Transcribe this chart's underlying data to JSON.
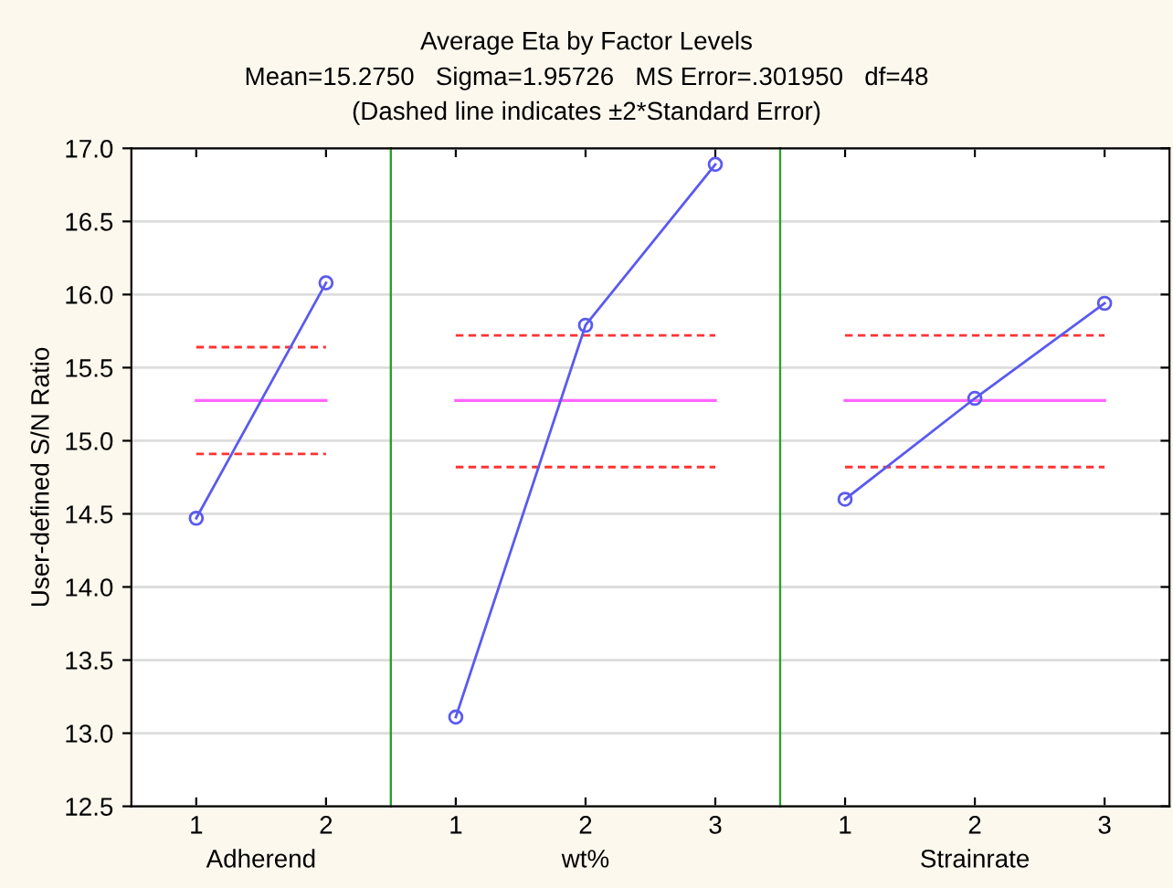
{
  "chart_data": [
    {
      "type": "line",
      "xlabel": "Adherend",
      "ylabel": "User-defined S/N Ratio",
      "categories": [
        "1",
        "2"
      ],
      "series": [
        {
          "color": "#5a5af0",
          "values": [
            14.47,
            16.08
          ]
        }
      ],
      "ylim": [
        12.5,
        17.0
      ],
      "yticks": [
        {
          "value": 12.5,
          "label": "12.5"
        },
        {
          "value": 13.0,
          "label": "13.0"
        },
        {
          "value": 13.5,
          "label": "13.5"
        },
        {
          "value": 14.0,
          "label": "14.0"
        },
        {
          "value": 14.5,
          "label": "14.5"
        },
        {
          "value": 15.0,
          "label": "15.0"
        },
        {
          "value": 15.5,
          "label": "15.5"
        },
        {
          "value": 16.0,
          "label": "16.0"
        },
        {
          "value": 16.5,
          "label": "16.5"
        },
        {
          "value": 17.0,
          "label": "17.0"
        }
      ],
      "ref_lines": [
        {
          "axis": "y",
          "value": 15.275,
          "color": "#ff66ff",
          "line_style": "solid"
        },
        {
          "axis": "y",
          "value": 15.64,
          "color": "#ff3333",
          "line_style": "dashed"
        },
        {
          "axis": "y",
          "value": 14.91,
          "color": "#ff3333",
          "line_style": "dashed"
        }
      ],
      "grid": "y",
      "marker": "circle",
      "line_style": "solid"
    },
    {
      "type": "line",
      "title": "Average Eta by Factor Levels",
      "subtitle": "Mean=15.2750   Sigma=1.95726   MS Error=.301950   df=48\n(Dashed line indicates ±2*Standard Error)",
      "xlabel": "wt%",
      "categories": [
        "1",
        "2",
        "3"
      ],
      "series": [
        {
          "color": "#5a5af0",
          "values": [
            13.11,
            15.79,
            16.89
          ]
        }
      ],
      "ylim": [
        12.5,
        17.0
      ],
      "yticks": [
        12.5,
        13.0,
        13.5,
        14.0,
        14.5,
        15.0,
        15.5,
        16.0,
        16.5,
        17.0
      ],
      "ref_lines": [
        {
          "axis": "y",
          "value": 15.275,
          "color": "#ff66ff",
          "line_style": "solid"
        },
        {
          "axis": "y",
          "value": 15.72,
          "color": "#ff3333",
          "line_style": "dashed"
        },
        {
          "axis": "y",
          "value": 14.82,
          "color": "#ff3333",
          "line_style": "dashed"
        }
      ],
      "grid": "y",
      "marker": "circle",
      "line_style": "solid",
      "tick_labels": "x"
    },
    {
      "type": "line",
      "xlabel": "Strainrate",
      "categories": [
        "1",
        "2",
        "3"
      ],
      "series": [
        {
          "color": "#5a5af0",
          "values": [
            14.6,
            15.29,
            15.94
          ]
        }
      ],
      "ylim": [
        12.5,
        17.0
      ],
      "yticks": [
        12.5,
        13.0,
        13.5,
        14.0,
        14.5,
        15.0,
        15.5,
        16.0,
        16.5,
        17.0
      ],
      "ref_lines": [
        {
          "axis": "y",
          "value": 15.275,
          "color": "#ff66ff",
          "line_style": "solid"
        },
        {
          "axis": "y",
          "value": 15.72,
          "color": "#ff3333",
          "line_style": "dashed"
        },
        {
          "axis": "y",
          "value": 14.82,
          "color": "#ff3333",
          "line_style": "dashed"
        }
      ],
      "grid": "y",
      "marker": "circle",
      "line_style": "solid",
      "tick_labels": "x"
    }
  ]
}
